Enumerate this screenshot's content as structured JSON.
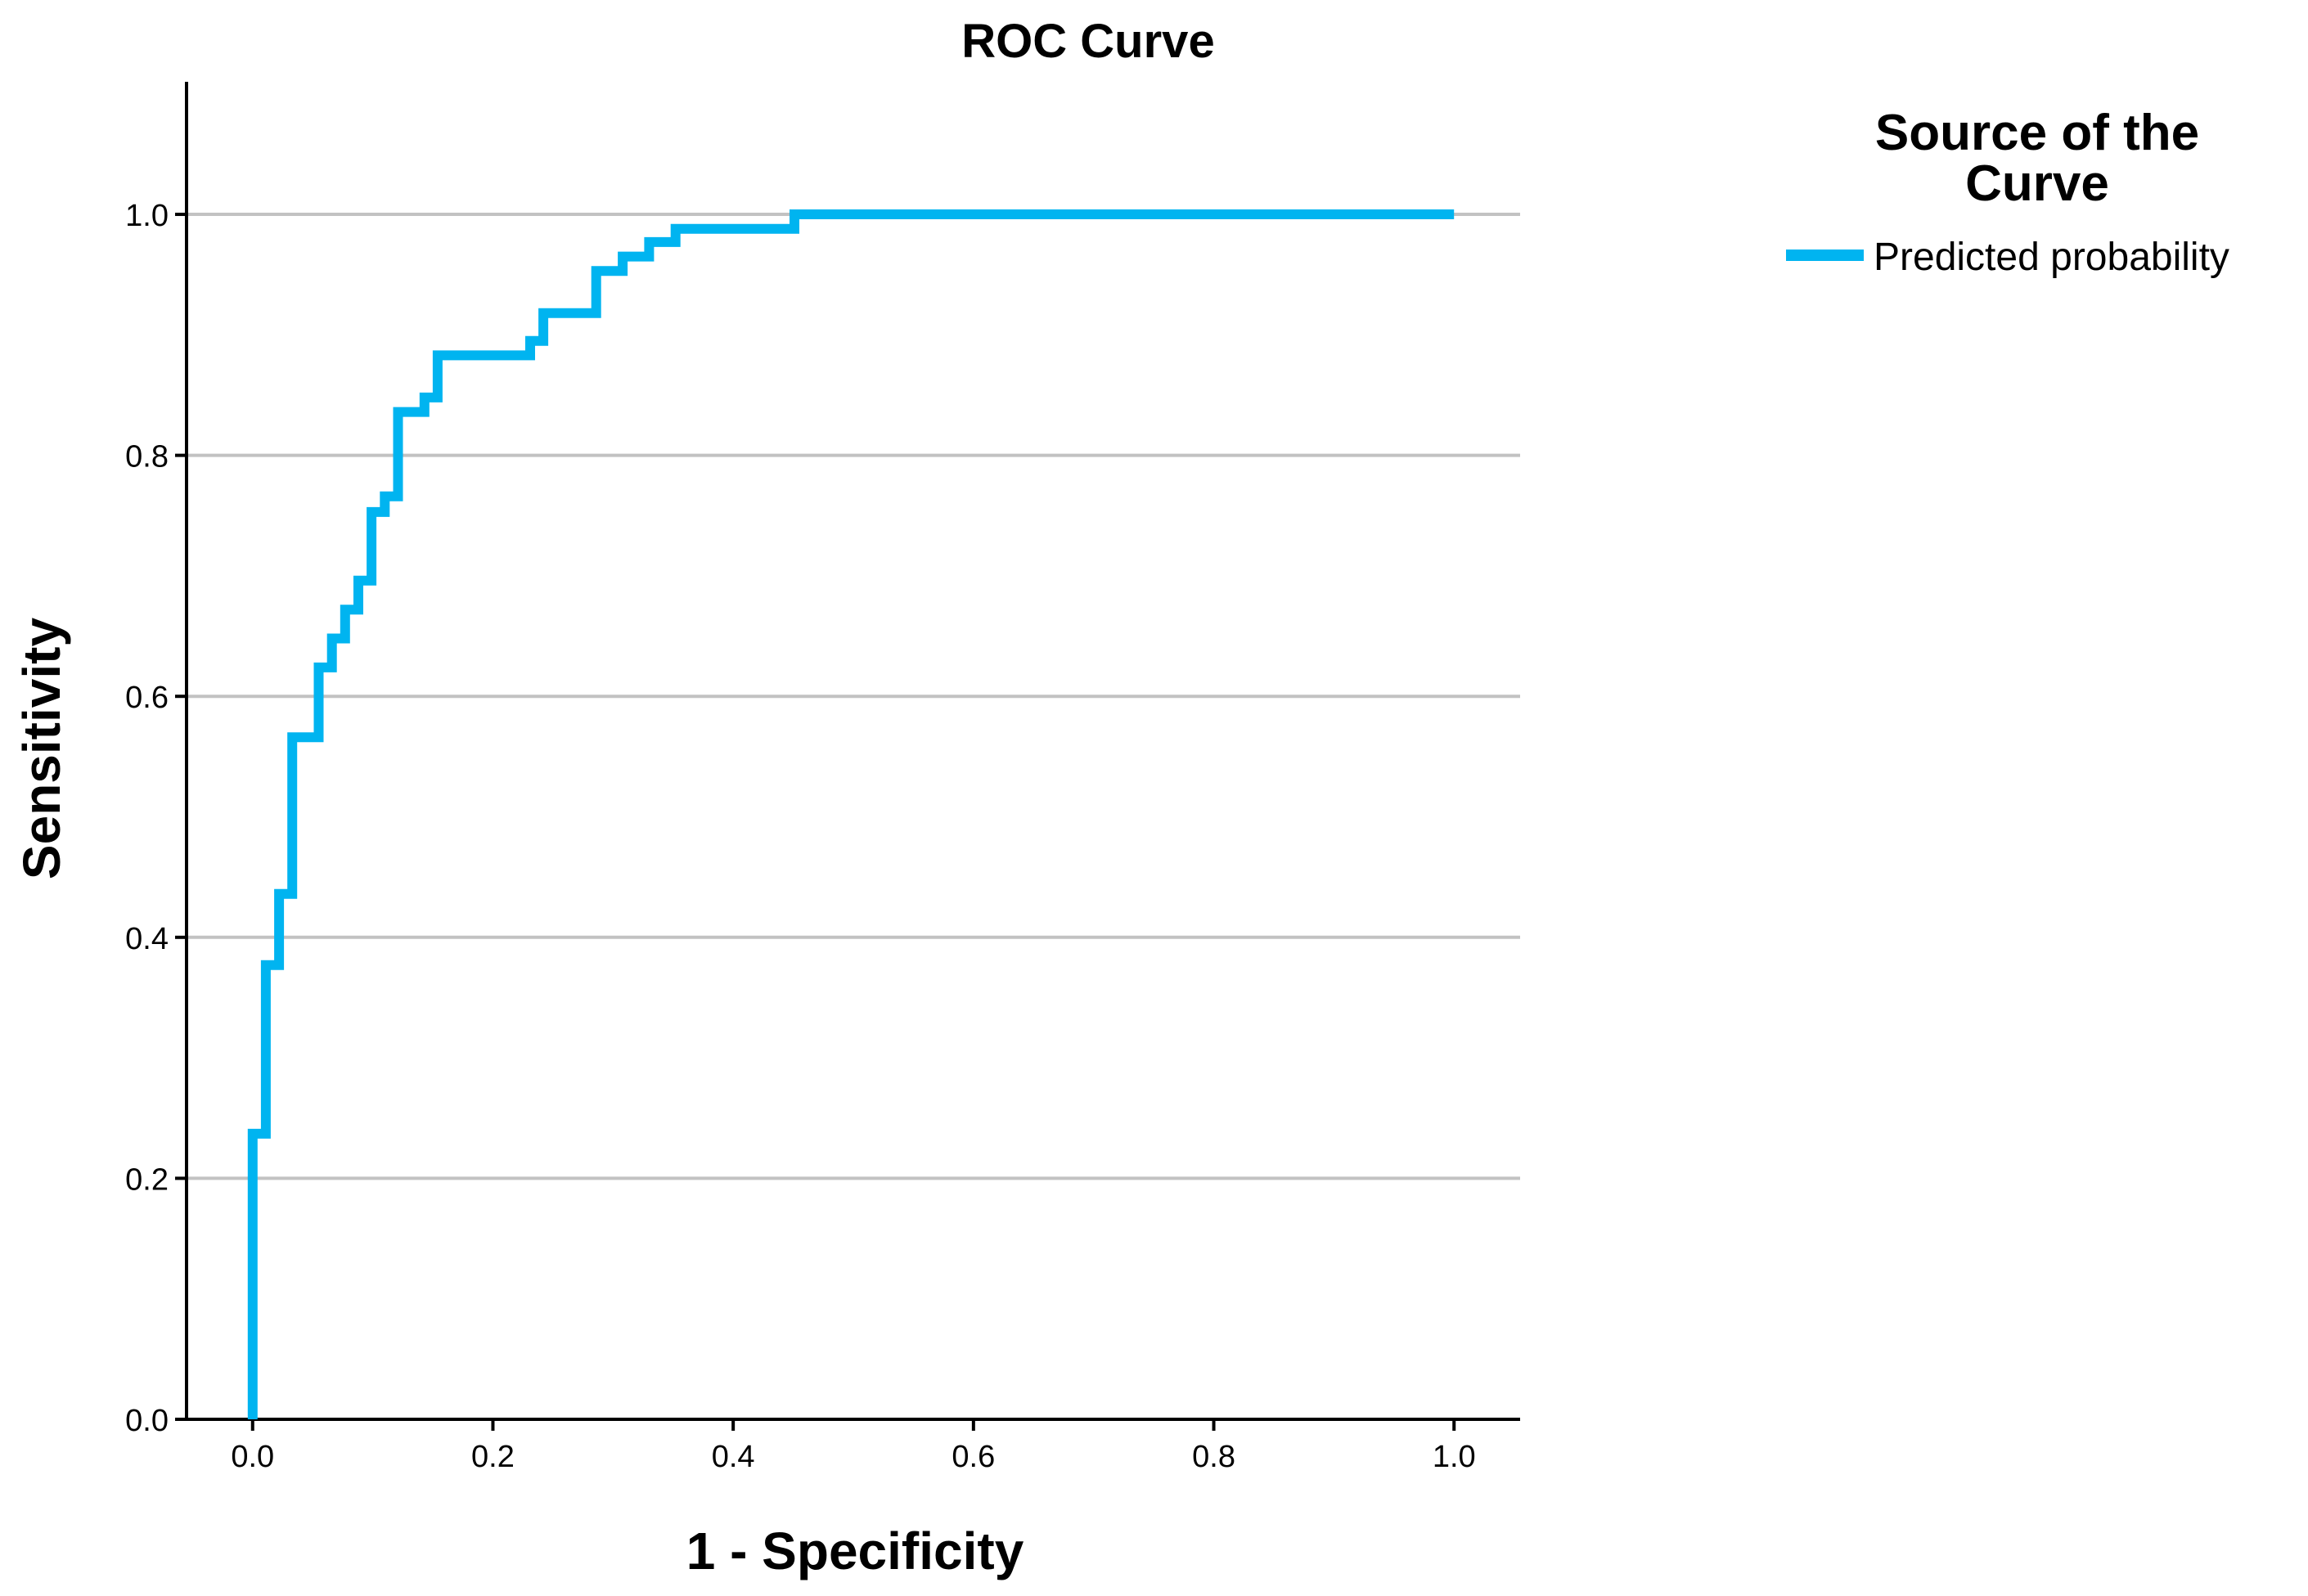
{
  "chart_data": {
    "type": "line",
    "title": "ROC Curve",
    "xlabel": "1 - Specificity",
    "ylabel": "Sensitivity",
    "xlim": [
      -0.055,
      1.055
    ],
    "ylim": [
      0.0,
      1.11
    ],
    "xticks": [
      0.0,
      0.2,
      0.4,
      0.6,
      0.8,
      1.0
    ],
    "xtick_labels": [
      "0.0",
      "0.2",
      "0.4",
      "0.6",
      "0.8",
      "1.0"
    ],
    "yticks": [
      0.0,
      0.2,
      0.4,
      0.6,
      0.8,
      1.0
    ],
    "ytick_labels": [
      "0.0",
      "0.2",
      "0.4",
      "0.6",
      "0.8",
      "1.0"
    ],
    "grid": "horizontal",
    "legend": {
      "title_lines": [
        "Source of the",
        "Curve"
      ],
      "position": "top-right, outside plot"
    },
    "series": [
      {
        "name": "Predicted probability",
        "color": "#00b4f0",
        "step": true,
        "points": [
          [
            0.0,
            0.0
          ],
          [
            0.0,
            0.237
          ],
          [
            0.011,
            0.237
          ],
          [
            0.011,
            0.377
          ],
          [
            0.022,
            0.377
          ],
          [
            0.022,
            0.436
          ],
          [
            0.033,
            0.436
          ],
          [
            0.033,
            0.566
          ],
          [
            0.055,
            0.566
          ],
          [
            0.055,
            0.624
          ],
          [
            0.066,
            0.624
          ],
          [
            0.066,
            0.648
          ],
          [
            0.077,
            0.648
          ],
          [
            0.077,
            0.672
          ],
          [
            0.088,
            0.672
          ],
          [
            0.088,
            0.696
          ],
          [
            0.099,
            0.696
          ],
          [
            0.099,
            0.753
          ],
          [
            0.11,
            0.753
          ],
          [
            0.11,
            0.766
          ],
          [
            0.121,
            0.766
          ],
          [
            0.121,
            0.836
          ],
          [
            0.143,
            0.836
          ],
          [
            0.143,
            0.848
          ],
          [
            0.154,
            0.848
          ],
          [
            0.154,
            0.883
          ],
          [
            0.231,
            0.883
          ],
          [
            0.231,
            0.895
          ],
          [
            0.242,
            0.895
          ],
          [
            0.242,
            0.918
          ],
          [
            0.286,
            0.918
          ],
          [
            0.286,
            0.953
          ],
          [
            0.308,
            0.953
          ],
          [
            0.308,
            0.965
          ],
          [
            0.33,
            0.965
          ],
          [
            0.33,
            0.977
          ],
          [
            0.352,
            0.977
          ],
          [
            0.352,
            0.988
          ],
          [
            0.451,
            0.988
          ],
          [
            0.451,
            1.0
          ],
          [
            1.0,
            1.0
          ]
        ]
      }
    ]
  }
}
